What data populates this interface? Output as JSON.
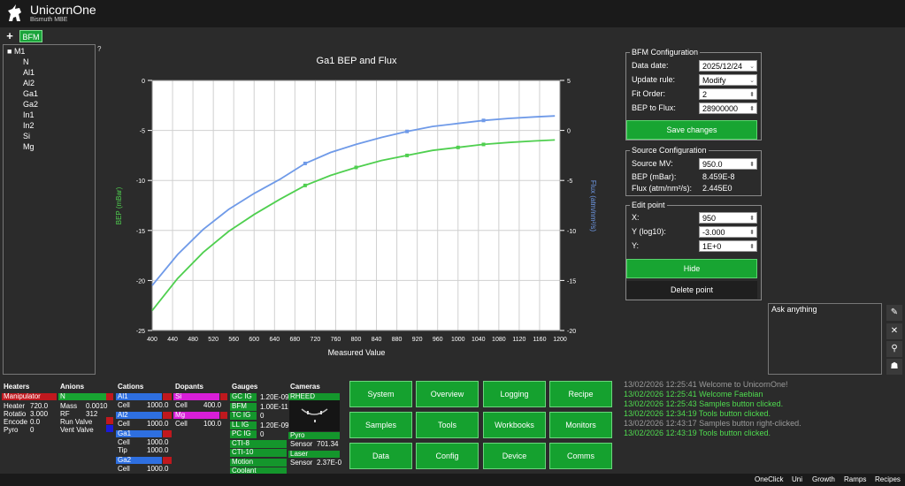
{
  "header": {
    "title": "UnicornOne",
    "subtitle": "Bismuth MBE"
  },
  "tabs": {
    "add": "+",
    "active": "BFM"
  },
  "tree": {
    "help": "?",
    "root": "M1",
    "items": [
      "N",
      "Al1",
      "Al2",
      "Ga1",
      "Ga2",
      "In1",
      "In2",
      "Si",
      "Mg"
    ]
  },
  "chart_data": {
    "type": "line",
    "title": "Ga1 BEP and Flux",
    "xlabel": "Measured Value",
    "ylabel_left": "BEP (mBar)",
    "ylabel_right": "Flux (atm/nm²/s)",
    "xlim": [
      400,
      1200
    ],
    "ylim_left": [
      -25,
      0
    ],
    "ylim_right": [
      -20,
      5
    ],
    "x_ticks": [
      400,
      440,
      480,
      520,
      560,
      600,
      640,
      680,
      720,
      760,
      800,
      840,
      880,
      920,
      960,
      1000,
      1040,
      1080,
      1120,
      1160,
      1200
    ],
    "y_left_ticks": [
      0,
      -5,
      -10,
      -15,
      -20,
      -25
    ],
    "y_right_ticks": [
      5,
      0,
      -5,
      -10,
      -15,
      -20
    ],
    "grid": true,
    "series": [
      {
        "color": "#4fcf4f",
        "axis": "left",
        "x": [
          400,
          450,
          500,
          550,
          600,
          650,
          700,
          750,
          800,
          850,
          900,
          950,
          1000,
          1050,
          1100,
          1150,
          1190
        ],
        "y": [
          -23.0,
          -19.8,
          -17.2,
          -15.1,
          -13.4,
          -11.9,
          -10.5,
          -9.5,
          -8.7,
          -8.0,
          -7.5,
          -7.0,
          -6.7,
          -6.4,
          -6.2,
          -6.05,
          -5.95
        ],
        "markers": {
          "x": [
            700,
            800,
            900,
            1000,
            1050
          ],
          "y": [
            -10.5,
            -8.7,
            -7.5,
            -6.7,
            -6.4
          ]
        }
      },
      {
        "color": "#6f9ae8",
        "axis": "right",
        "x": [
          400,
          450,
          500,
          550,
          600,
          650,
          700,
          750,
          800,
          850,
          900,
          950,
          1000,
          1050,
          1100,
          1150,
          1190
        ],
        "y": [
          -15.5,
          -12.4,
          -9.9,
          -7.9,
          -6.3,
          -4.9,
          -3.3,
          -2.2,
          -1.4,
          -0.7,
          -0.1,
          0.4,
          0.7,
          1.0,
          1.2,
          1.35,
          1.45
        ],
        "markers": {
          "x": [
            700,
            900,
            1050
          ],
          "y": [
            -3.3,
            -0.1,
            1.0
          ]
        }
      }
    ]
  },
  "bfm_config": {
    "title": "BFM Configuration",
    "data_date_label": "Data date:",
    "data_date": "2025/12/24",
    "update_rule_label": "Update rule:",
    "update_rule": "Modify",
    "fit_order_label": "Fit Order:",
    "fit_order": "2",
    "bep_to_flux_label": "BEP to Flux:",
    "bep_to_flux": "28900000",
    "save_label": "Save changes"
  },
  "source_config": {
    "title": "Source Configuration",
    "source_mv_label": "Source MV:",
    "source_mv": "950.0",
    "bep_label": "BEP (mBar):",
    "bep": "8.459E-8",
    "flux_label": "Flux (atm/nm²/s):",
    "flux": "2.445E0"
  },
  "edit_point": {
    "title": "Edit point",
    "x_label": "X:",
    "x": "950",
    "ylog_label": "Y (log10):",
    "ylog": "-3.000",
    "y_label": "Y:",
    "y": "1E+0",
    "hide_label": "Hide",
    "delete_label": "Delete point"
  },
  "ask": {
    "placeholder": "Ask anything"
  },
  "side_icons": [
    "✎",
    "✕",
    "⚲",
    "☗"
  ],
  "heaters": {
    "head": "Heaters",
    "name": "Manipulator",
    "rows": [
      [
        "Heater",
        "720.0"
      ],
      [
        "Rotatio",
        "3.000"
      ],
      [
        "Encode",
        "0.0"
      ],
      [
        "Pyro",
        "0"
      ]
    ]
  },
  "anions": {
    "head": "Anions",
    "name": "N",
    "rows": [
      [
        "Mass",
        "0.0010"
      ],
      [
        "RF",
        "312"
      ],
      [
        "Run Valve",
        ""
      ],
      [
        "Vent Valve",
        ""
      ]
    ]
  },
  "cations": {
    "head": "Cations",
    "groups": [
      {
        "name": "Al1",
        "rows": [
          [
            "Cell",
            "1000.0"
          ]
        ]
      },
      {
        "name": "Al2",
        "rows": [
          [
            "Cell",
            "1000.0"
          ]
        ]
      },
      {
        "name": "Ga1",
        "rows": [
          [
            "Cell",
            "1000.0"
          ],
          [
            "Tip",
            "1000.0"
          ]
        ]
      },
      {
        "name": "Ga2",
        "rows": [
          [
            "Cell",
            "1000.0"
          ]
        ]
      }
    ]
  },
  "dopants": {
    "head": "Dopants",
    "groups": [
      {
        "name": "Si",
        "rows": [
          [
            "Cell",
            "400.0"
          ]
        ]
      },
      {
        "name": "Mg",
        "rows": [
          [
            "Cell",
            "100.0"
          ]
        ]
      }
    ]
  },
  "gauges": {
    "head": "Gauges",
    "rows": [
      [
        "GC IG",
        "1.20E-09"
      ],
      [
        "BFM",
        "1.00E-11"
      ],
      [
        "TC IG",
        "0"
      ],
      [
        "LL IG",
        "1.20E-09"
      ],
      [
        "PC IG",
        "0"
      ],
      [
        "CTI-8",
        ""
      ],
      [
        "CTI-10",
        ""
      ],
      [
        "Motion",
        ""
      ],
      [
        "Coolant",
        ""
      ]
    ]
  },
  "cameras": {
    "head": "Cameras",
    "rheed": "RHEED",
    "pyro": "Pyro",
    "pyro_sensor_label": "Sensor",
    "pyro_sensor": "701.34",
    "laser": "Laser",
    "laser_sensor_label": "Sensor",
    "laser_sensor": "2.37E-0"
  },
  "nav": {
    "row1": [
      "System",
      "Overview",
      "Logging",
      "Recipe"
    ],
    "row2": [
      "Samples",
      "Tools",
      "Workbooks",
      "Monitors"
    ],
    "row3": [
      "Data",
      "Config",
      "Device",
      "Comms"
    ]
  },
  "log": [
    {
      "time": "13/02/2026 12:25:41",
      "msg": "Welcome to UnicornOne!",
      "color": "#9a9a9a"
    },
    {
      "time": "13/02/2026 12:25:41",
      "msg": "Welcome Faebian",
      "color": "#4fdb4f"
    },
    {
      "time": "13/02/2026 12:25:43",
      "msg": "Samples button clicked.",
      "color": "#4fdb4f"
    },
    {
      "time": "13/02/2026 12:34:19",
      "msg": "Tools button clicked.",
      "color": "#4fdb4f"
    },
    {
      "time": "13/02/2026 12:43:17",
      "msg": "Samples button right-clicked.",
      "color": "#9a9a9a"
    },
    {
      "time": "13/02/2026 12:43:19",
      "msg": "Tools button clicked.",
      "color": "#4fdb4f"
    }
  ],
  "footer": [
    "OneClick",
    "Uni",
    "Growth",
    "Ramps",
    "Recipes"
  ]
}
